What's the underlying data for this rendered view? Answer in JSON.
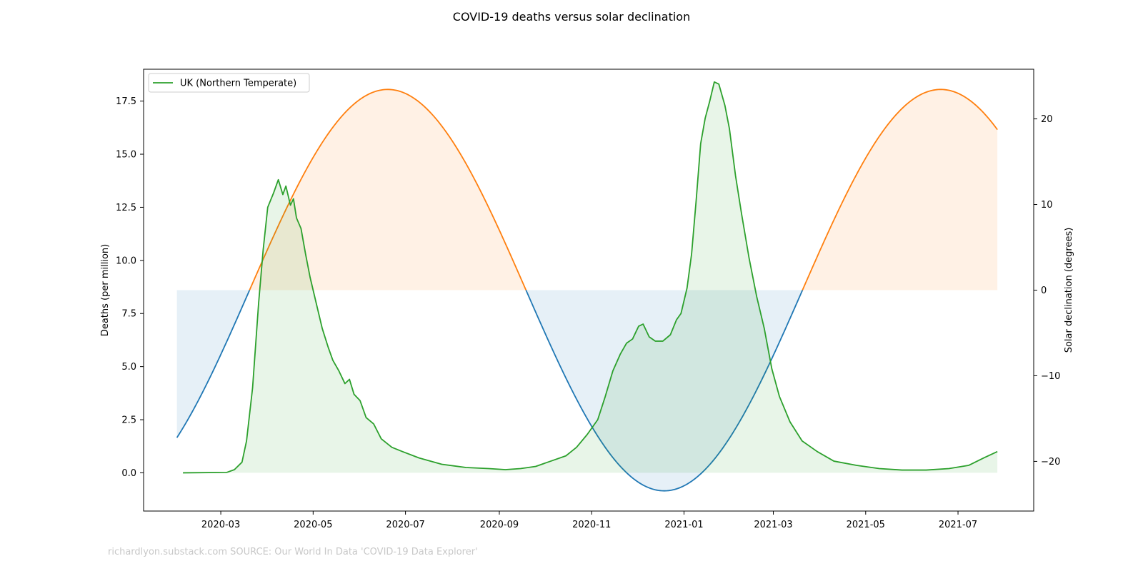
{
  "chart_data": {
    "type": "line",
    "title": "COVID-19 deaths versus solar declination",
    "ylabel": "Deaths (per million)",
    "y2label": "Solar declination (degrees)",
    "credit": "richardlyon.substack.com SOURCE: Our World In Data 'COVID-19 Data Explorer'",
    "x_range": [
      "2020-01-10",
      "2021-08-20"
    ],
    "ylim": [
      -1.8,
      19.0
    ],
    "y2lim": [
      -25.8,
      25.8
    ],
    "x_ticks": [
      "2020-03",
      "2020-05",
      "2020-07",
      "2020-09",
      "2020-11",
      "2021-01",
      "2021-03",
      "2021-05",
      "2021-07"
    ],
    "y_ticks": [
      "0.0",
      "2.5",
      "5.0",
      "7.5",
      "10.0",
      "12.5",
      "15.0",
      "17.5"
    ],
    "y2_ticks": [
      "−20",
      "−10",
      "0",
      "10",
      "20"
    ],
    "legend": {
      "placement": "top-left",
      "entries": [
        "UK (Northern Temperate)"
      ]
    },
    "colors": {
      "deaths": "#2ca02c",
      "decl_positive": "#ff7f0e",
      "decl_negative": "#1f77b4",
      "frame": "#000000"
    },
    "declination": {
      "start": "2020-02-01",
      "end": "2021-07-27",
      "amplitude": 23.44,
      "period_days": 365.25,
      "zero_crossing": "2020-03-20"
    },
    "series": [
      {
        "name": "UK (Northern Temperate)",
        "axis": "left",
        "points": [
          [
            "2020-02-05",
            0.0
          ],
          [
            "2020-03-05",
            0.02
          ],
          [
            "2020-03-10",
            0.15
          ],
          [
            "2020-03-15",
            0.5
          ],
          [
            "2020-03-18",
            1.5
          ],
          [
            "2020-03-22",
            4.0
          ],
          [
            "2020-03-26",
            8.0
          ],
          [
            "2020-03-29",
            10.5
          ],
          [
            "2020-04-01",
            12.5
          ],
          [
            "2020-04-05",
            13.2
          ],
          [
            "2020-04-08",
            13.8
          ],
          [
            "2020-04-11",
            13.1
          ],
          [
            "2020-04-13",
            13.5
          ],
          [
            "2020-04-16",
            12.6
          ],
          [
            "2020-04-18",
            12.9
          ],
          [
            "2020-04-20",
            12.0
          ],
          [
            "2020-04-23",
            11.5
          ],
          [
            "2020-04-26",
            10.3
          ],
          [
            "2020-04-29",
            9.2
          ],
          [
            "2020-05-03",
            8.0
          ],
          [
            "2020-05-07",
            6.8
          ],
          [
            "2020-05-11",
            5.9
          ],
          [
            "2020-05-14",
            5.3
          ],
          [
            "2020-05-18",
            4.8
          ],
          [
            "2020-05-22",
            4.2
          ],
          [
            "2020-05-25",
            4.4
          ],
          [
            "2020-05-28",
            3.7
          ],
          [
            "2020-06-01",
            3.4
          ],
          [
            "2020-06-05",
            2.6
          ],
          [
            "2020-06-10",
            2.3
          ],
          [
            "2020-06-15",
            1.6
          ],
          [
            "2020-06-22",
            1.2
          ],
          [
            "2020-06-29",
            1.0
          ],
          [
            "2020-07-10",
            0.7
          ],
          [
            "2020-07-25",
            0.4
          ],
          [
            "2020-08-10",
            0.25
          ],
          [
            "2020-08-25",
            0.2
          ],
          [
            "2020-09-05",
            0.15
          ],
          [
            "2020-09-15",
            0.2
          ],
          [
            "2020-09-25",
            0.3
          ],
          [
            "2020-10-05",
            0.55
          ],
          [
            "2020-10-15",
            0.8
          ],
          [
            "2020-10-22",
            1.2
          ],
          [
            "2020-10-29",
            1.8
          ],
          [
            "2020-11-05",
            2.5
          ],
          [
            "2020-11-10",
            3.6
          ],
          [
            "2020-11-15",
            4.8
          ],
          [
            "2020-11-20",
            5.6
          ],
          [
            "2020-11-24",
            6.1
          ],
          [
            "2020-11-28",
            6.3
          ],
          [
            "2020-12-02",
            6.9
          ],
          [
            "2020-12-05",
            7.0
          ],
          [
            "2020-12-09",
            6.4
          ],
          [
            "2020-12-13",
            6.2
          ],
          [
            "2020-12-18",
            6.2
          ],
          [
            "2020-12-23",
            6.5
          ],
          [
            "2020-12-27",
            7.2
          ],
          [
            "2020-12-30",
            7.5
          ],
          [
            "2021-01-03",
            8.7
          ],
          [
            "2021-01-06",
            10.3
          ],
          [
            "2021-01-09",
            12.8
          ],
          [
            "2021-01-12",
            15.5
          ],
          [
            "2021-01-15",
            16.7
          ],
          [
            "2021-01-18",
            17.5
          ],
          [
            "2021-01-21",
            18.4
          ],
          [
            "2021-01-24",
            18.3
          ],
          [
            "2021-01-28",
            17.3
          ],
          [
            "2021-01-31",
            16.2
          ],
          [
            "2021-02-04",
            14.0
          ],
          [
            "2021-02-08",
            12.2
          ],
          [
            "2021-02-13",
            10.1
          ],
          [
            "2021-02-18",
            8.3
          ],
          [
            "2021-02-23",
            6.8
          ],
          [
            "2021-02-28",
            4.9
          ],
          [
            "2021-03-05",
            3.6
          ],
          [
            "2021-03-12",
            2.4
          ],
          [
            "2021-03-20",
            1.5
          ],
          [
            "2021-03-30",
            1.0
          ],
          [
            "2021-04-10",
            0.55
          ],
          [
            "2021-04-25",
            0.35
          ],
          [
            "2021-05-10",
            0.2
          ],
          [
            "2021-05-25",
            0.13
          ],
          [
            "2021-06-10",
            0.13
          ],
          [
            "2021-06-25",
            0.2
          ],
          [
            "2021-07-08",
            0.35
          ],
          [
            "2021-07-18",
            0.7
          ],
          [
            "2021-07-27",
            1.0
          ]
        ]
      }
    ]
  }
}
